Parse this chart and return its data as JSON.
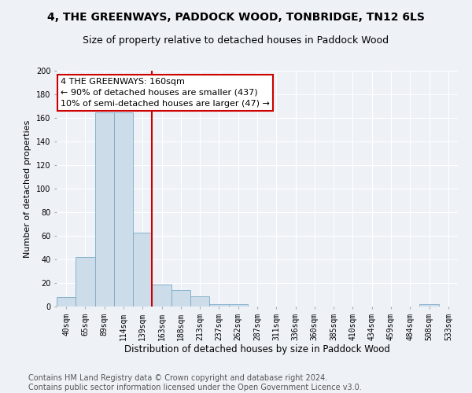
{
  "title": "4, THE GREENWAYS, PADDOCK WOOD, TONBRIDGE, TN12 6LS",
  "subtitle": "Size of property relative to detached houses in Paddock Wood",
  "xlabel": "Distribution of detached houses by size in Paddock Wood",
  "ylabel": "Number of detached properties",
  "bar_color": "#ccdce8",
  "bar_edge_color": "#7aaac8",
  "categories": [
    "40sqm",
    "65sqm",
    "89sqm",
    "114sqm",
    "139sqm",
    "163sqm",
    "188sqm",
    "213sqm",
    "237sqm",
    "262sqm",
    "287sqm",
    "311sqm",
    "336sqm",
    "360sqm",
    "385sqm",
    "410sqm",
    "434sqm",
    "459sqm",
    "484sqm",
    "508sqm",
    "533sqm"
  ],
  "values": [
    8,
    42,
    165,
    165,
    63,
    19,
    14,
    9,
    2,
    2,
    0,
    0,
    0,
    0,
    0,
    0,
    0,
    0,
    0,
    2,
    0
  ],
  "vline_x_index": 5,
  "vline_color": "#cc0000",
  "annotation_line1": "4 THE GREENWAYS: 160sqm",
  "annotation_line2": "← 90% of detached houses are smaller (437)",
  "annotation_line3": "10% of semi-detached houses are larger (47) →",
  "annotation_box_color": "#ffffff",
  "annotation_box_edge_color": "#cc0000",
  "ylim": [
    0,
    200
  ],
  "yticks": [
    0,
    20,
    40,
    60,
    80,
    100,
    120,
    140,
    160,
    180,
    200
  ],
  "footer_text": "Contains HM Land Registry data © Crown copyright and database right 2024.\nContains public sector information licensed under the Open Government Licence v3.0.",
  "background_color": "#eef2f7",
  "grid_color": "#ffffff",
  "title_fontsize": 10,
  "subtitle_fontsize": 9,
  "annotation_fontsize": 8,
  "footer_fontsize": 7,
  "ylabel_fontsize": 8,
  "xlabel_fontsize": 8.5,
  "tick_fontsize": 7
}
